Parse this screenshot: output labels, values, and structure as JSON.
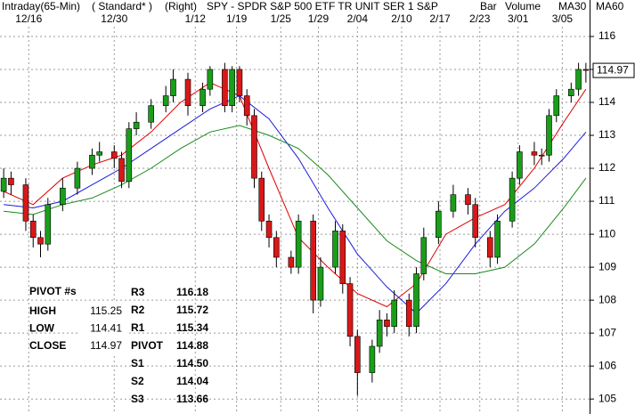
{
  "chart_data": {
    "type": "candlestick",
    "title": "SPY - SPDR S&P 500 ETF TR UNIT SER 1 S&P",
    "header_labels": [
      "Intraday(65-Min)",
      "( Standard* )",
      "(Right)"
    ],
    "bar_label": "Bar",
    "volume_label": "Volume",
    "up_color": "#1a9e1a",
    "down_color": "#d81818",
    "grid": true,
    "xlim": [
      -0.5,
      79.5
    ],
    "ylim": [
      104.6,
      116.35
    ],
    "xticks": [
      {
        "value": 3.4,
        "label": "12/16"
      },
      {
        "value": 15,
        "label": "12/30"
      },
      {
        "value": 26,
        "label": "1/12"
      },
      {
        "value": 31.6,
        "label": "1/19"
      },
      {
        "value": 37.6,
        "label": "1/25"
      },
      {
        "value": 42.7,
        "label": "1/29"
      },
      {
        "value": 48,
        "label": "2/04"
      },
      {
        "value": 54,
        "label": "2/10"
      },
      {
        "value": 59.2,
        "label": "2/17"
      },
      {
        "value": 64.6,
        "label": "2/23"
      },
      {
        "value": 69.8,
        "label": "3/01"
      },
      {
        "value": 75.8,
        "label": "3/05"
      }
    ],
    "yticks": [
      105,
      106,
      107,
      108,
      109,
      110,
      111,
      112,
      113,
      114,
      115,
      116
    ],
    "last_price": 114.97,
    "x": [
      0,
      1,
      3,
      4,
      5,
      6,
      8,
      10,
      12,
      13,
      15,
      16,
      17,
      18,
      20,
      22,
      23,
      25,
      27,
      28,
      30,
      31,
      32,
      33,
      34,
      35,
      36,
      37,
      39,
      40,
      42,
      43,
      45,
      46,
      47,
      48,
      50,
      51,
      52,
      53,
      55,
      56,
      57,
      59,
      61,
      63,
      64,
      66,
      67,
      69,
      70,
      72,
      73,
      74,
      75,
      77,
      78,
      79
    ],
    "open": [
      111.3,
      111.7,
      111.5,
      110.4,
      109.9,
      109.7,
      110.9,
      111.4,
      112,
      112.4,
      112.5,
      112.3,
      111.6,
      113.2,
      113.4,
      113.9,
      114.2,
      114.7,
      113.9,
      114.4,
      115,
      113.9,
      115,
      114.2,
      113.6,
      111.7,
      110.4,
      109.9,
      109.3,
      109,
      110.4,
      108,
      109,
      110.1,
      108.5,
      106.9,
      105.8,
      106.6,
      107.4,
      107.2,
      108,
      107.2,
      108.8,
      109.9,
      110.7,
      111.2,
      110.9,
      109.9,
      109.3,
      110.4,
      111.7,
      112.5,
      112.4,
      112.4,
      113.6,
      114.2,
      114.4,
      115
    ],
    "high": [
      112,
      111.9,
      111.7,
      110.6,
      110.1,
      111.1,
      111.7,
      112.2,
      112.6,
      112.8,
      112.7,
      112.5,
      113.4,
      113.7,
      114.1,
      114.5,
      115,
      114.9,
      114.6,
      115.1,
      115.2,
      115.1,
      115.1,
      114.4,
      113.8,
      111.9,
      110.6,
      110.1,
      109.5,
      110.6,
      110.6,
      109.3,
      110.4,
      110.3,
      108.7,
      107.1,
      106.8,
      107.7,
      107.6,
      108.3,
      108.2,
      109,
      110.2,
      111,
      111.5,
      111.4,
      111.1,
      110.1,
      110.6,
      111.9,
      112.7,
      112.8,
      112.6,
      113.8,
      114.4,
      114.6,
      115.2,
      115.2
    ],
    "low": [
      111.1,
      111.2,
      110.1,
      109.6,
      109.3,
      109.5,
      110.7,
      111.2,
      111.8,
      112.2,
      112,
      111.4,
      111.4,
      113,
      113.2,
      113.7,
      114,
      113.6,
      113.7,
      114.2,
      113.7,
      113.7,
      114,
      113.3,
      111.4,
      110.1,
      109.6,
      109,
      108.8,
      108.8,
      107.6,
      107.8,
      108.8,
      108.2,
      106.6,
      105.1,
      105.5,
      106.4,
      106.9,
      107,
      106.9,
      107,
      108.6,
      109.7,
      110.5,
      110.6,
      109.6,
      109,
      109.1,
      110.2,
      111.5,
      112.1,
      112.1,
      112.2,
      113.4,
      114,
      114.2,
      114.6
    ],
    "close": [
      111.7,
      111.5,
      110.4,
      109.9,
      109.7,
      110.9,
      111.4,
      112,
      112.4,
      112.5,
      112.3,
      111.6,
      113.2,
      113.4,
      113.9,
      114.2,
      114.7,
      113.9,
      114.4,
      115,
      113.9,
      115,
      114.2,
      113.6,
      111.7,
      110.4,
      109.9,
      109.3,
      109,
      110.4,
      108,
      109,
      110.1,
      108.5,
      106.9,
      105.8,
      106.6,
      107.4,
      107.2,
      108,
      107.2,
      108.8,
      109.9,
      110.7,
      111.2,
      110.9,
      109.9,
      109.3,
      110.4,
      111.7,
      112.5,
      112.4,
      112.4,
      113.6,
      114.2,
      114.4,
      115,
      114.97
    ],
    "series": [
      {
        "name": "MA30",
        "color": "#e00000",
        "x": [
          0,
          4,
          8,
          12,
          16,
          20,
          24,
          28,
          32,
          36,
          40,
          44,
          48,
          52,
          56,
          60,
          64,
          68,
          72,
          76,
          79
        ],
        "values": [
          111.3,
          110.9,
          111.7,
          112.1,
          112.4,
          113.1,
          114.0,
          114.6,
          114.2,
          112.0,
          109.9,
          109.0,
          108.2,
          107.8,
          108.5,
          110.0,
          110.5,
          110.9,
          112.0,
          113.4,
          114.4
        ]
      },
      {
        "name": "MA60",
        "color": "#1a1ae0",
        "x": [
          0,
          4,
          8,
          12,
          16,
          20,
          24,
          28,
          32,
          36,
          40,
          44,
          48,
          52,
          56,
          60,
          64,
          68,
          72,
          76,
          79
        ],
        "values": [
          110.9,
          110.8,
          111.0,
          111.5,
          112.0,
          112.6,
          113.2,
          113.8,
          114.2,
          113.5,
          112.3,
          110.8,
          109.4,
          108.4,
          107.6,
          108.5,
          109.7,
          110.7,
          111.4,
          112.3,
          113.1
        ]
      },
      {
        "color": "#1a8a1a",
        "x": [
          0,
          4,
          8,
          12,
          16,
          20,
          24,
          28,
          32,
          36,
          40,
          44,
          48,
          52,
          56,
          60,
          64,
          68,
          72,
          76,
          79
        ],
        "values": [
          110.7,
          110.6,
          110.9,
          111.1,
          111.5,
          112.0,
          112.6,
          113.1,
          113.3,
          113.0,
          112.6,
          111.8,
          110.8,
          109.8,
          109.2,
          108.8,
          108.8,
          109.0,
          109.7,
          110.8,
          111.7
        ]
      }
    ]
  },
  "pivot_table": {
    "title": "PIVOT #s",
    "left": [
      {
        "label": "HIGH",
        "value": "115.25",
        "color": "#1a9e3a"
      },
      {
        "label": "LOW",
        "value": "114.41",
        "color": "#e00000"
      },
      {
        "label": "CLOSE",
        "value": "114.97",
        "color": "#1a5fcc"
      }
    ],
    "right": [
      {
        "label": "R3",
        "value": "116.18",
        "color": "#e00000"
      },
      {
        "label": "R2",
        "value": "115.72",
        "color": "#e00000"
      },
      {
        "label": "R1",
        "value": "115.34",
        "color": "#e00000"
      },
      {
        "label": "PIVOT",
        "value": "114.88",
        "color": "#1a5fcc"
      },
      {
        "label": "S1",
        "value": "114.50",
        "color": "#1a9e3a"
      },
      {
        "label": "S2",
        "value": "114.04",
        "color": "#1a9e3a"
      },
      {
        "label": "S3",
        "value": "113.66",
        "color": "#1a9e3a"
      }
    ]
  }
}
